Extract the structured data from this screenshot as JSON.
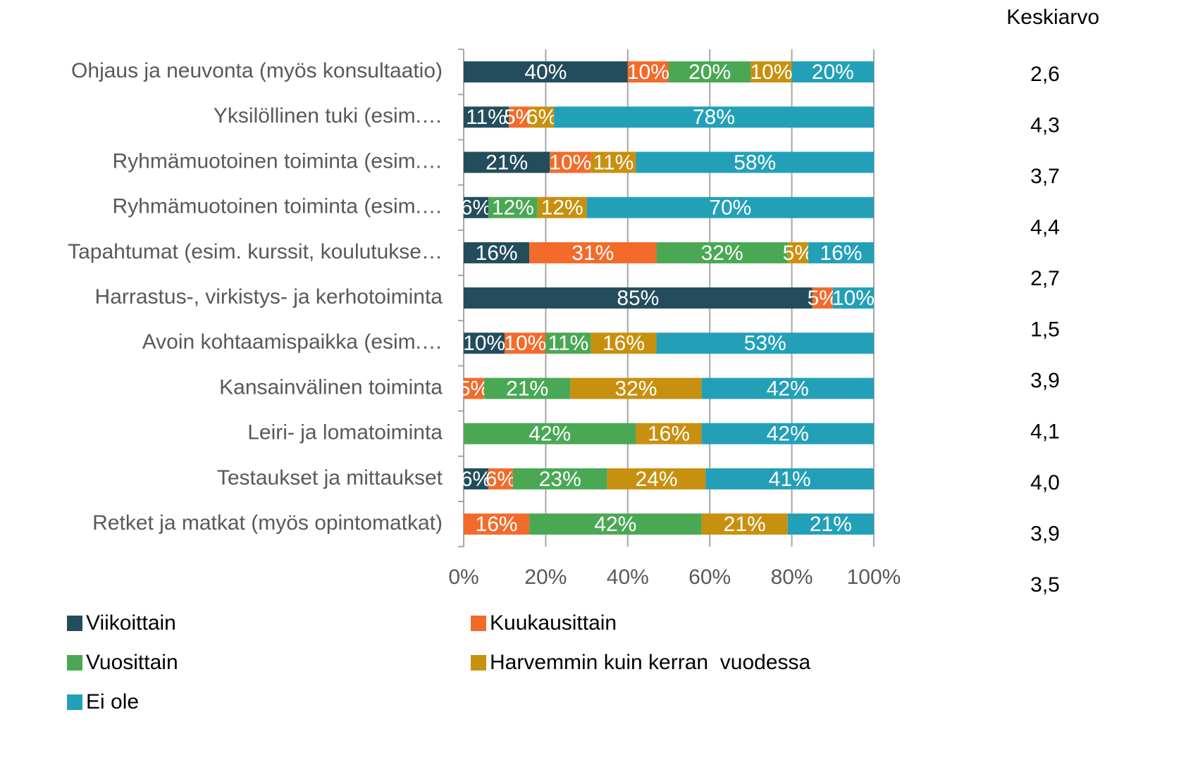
{
  "chart_data": {
    "type": "stacked_barh",
    "categories": [
      "Ohjaus ja neuvonta (myös konsultaatio)",
      "Yksilöllinen tuki (esim.…",
      "Ryhmämuotoinen toiminta (esim.…",
      "Ryhmämuotoinen toiminta (esim.…",
      "Tapahtumat (esim. kurssit, koulutukse…",
      "Harrastus-, virkistys- ja kerhotoiminta",
      "Avoin kohtaamispaikka (esim.…",
      "Kansainvälinen toiminta",
      "Leiri- ja lomatoiminta",
      "Testaukset ja mittaukset",
      "Retket ja matkat (myös opintomatkat)"
    ],
    "series": [
      {
        "name": "Viikoittain",
        "color": "#234d5c",
        "values": [
          40,
          11,
          21,
          6,
          16,
          85,
          10,
          0,
          0,
          6,
          0
        ],
        "value_labels": [
          "40%",
          "11%",
          "21%",
          "6%",
          "16%",
          "85%",
          "10%",
          null,
          null,
          "6%",
          null
        ]
      },
      {
        "name": "Kuukausittain",
        "color": "#f26b2a",
        "values": [
          10,
          5,
          10,
          0,
          31,
          5,
          10,
          5,
          0,
          6,
          16
        ],
        "value_labels": [
          "10%",
          "5%",
          "10%",
          null,
          "31%",
          "5%",
          "10%",
          "5%",
          null,
          "6%",
          "16%"
        ]
      },
      {
        "name": "Vuosittain",
        "color": "#4aa854",
        "values": [
          20,
          0,
          0,
          12,
          32,
          0,
          11,
          21,
          42,
          23,
          42
        ],
        "value_labels": [
          "20%",
          null,
          null,
          "12%",
          "32%",
          null,
          "11%",
          "21%",
          "42%",
          "23%",
          "42%"
        ]
      },
      {
        "name": "Harvemmin kuin kerran  vuodessa",
        "color": "#c8900f",
        "values": [
          10,
          6,
          11,
          12,
          5,
          0,
          16,
          32,
          16,
          24,
          21
        ],
        "value_labels": [
          "10%",
          "6%",
          "11%",
          "12%",
          "5%",
          null,
          "16%",
          "32%",
          "16%",
          "24%",
          "21%"
        ]
      },
      {
        "name": "Ei ole",
        "color": "#23a0b8",
        "values": [
          20,
          78,
          58,
          70,
          16,
          10,
          53,
          42,
          42,
          41,
          21
        ],
        "value_labels": [
          "20%",
          "78%",
          "58%",
          "70%",
          "16%",
          "10%",
          "53%",
          "42%",
          "42%",
          "41%",
          "21%"
        ]
      }
    ],
    "xlim": [
      0,
      100
    ],
    "xticks": [
      {
        "value": 0,
        "label": "0%"
      },
      {
        "value": 20,
        "label": "20%"
      },
      {
        "value": 40,
        "label": "40%"
      },
      {
        "value": 60,
        "label": "60%"
      },
      {
        "value": 80,
        "label": "80%"
      },
      {
        "value": 100,
        "label": "100%"
      }
    ],
    "grid": true,
    "average_title": "Keskiarvo",
    "averages": [
      2.6,
      4.3,
      3.7,
      4.4,
      2.7,
      1.5,
      3.9,
      4.1,
      4.0,
      3.9,
      3.5
    ],
    "average_labels": [
      "2,6",
      "4,3",
      "3,7",
      "4,4",
      "2,7",
      "1,5",
      "3,9",
      "4,1",
      "4,0",
      "3,9",
      "3,5"
    ]
  }
}
